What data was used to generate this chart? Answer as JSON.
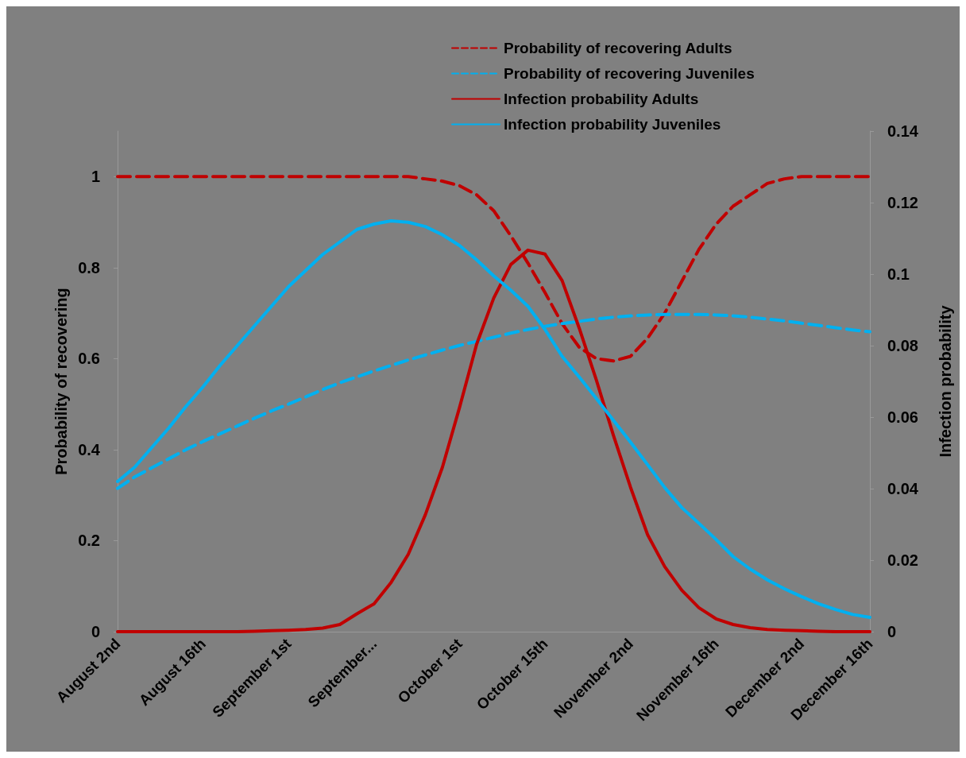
{
  "chart_data": {
    "type": "line",
    "ylabel": "Probability of recovering",
    "y2label": "Infection probability",
    "categories": [
      "August 2nd",
      null,
      null,
      null,
      null,
      "August 16th",
      null,
      null,
      null,
      null,
      "September 1st",
      null,
      null,
      null,
      null,
      "September...",
      null,
      null,
      null,
      null,
      "October 1st",
      null,
      null,
      null,
      null,
      "October 15th",
      null,
      null,
      null,
      null,
      "November 2nd",
      null,
      null,
      null,
      null,
      "November 16th",
      null,
      null,
      null,
      null,
      "December 2nd",
      null,
      null,
      null,
      "December 16th"
    ],
    "series": [
      {
        "name": "Probability of recovering Adults",
        "color": "#c00000",
        "line_style": "dashed",
        "values": [
          1,
          1,
          1,
          1,
          1,
          1,
          1,
          1,
          1,
          1,
          1,
          1,
          1,
          1,
          1,
          1,
          1,
          1,
          0.995,
          0.99,
          0.98,
          0.96,
          0.925,
          0.87,
          0.81,
          0.745,
          0.677,
          0.625,
          0.6,
          0.595,
          0.605,
          0.645,
          0.7,
          0.77,
          0.84,
          0.895,
          0.935,
          0.96,
          0.985,
          0.995,
          1,
          1,
          1,
          1,
          1
        ]
      },
      {
        "name": "Probability of recovering Juveniles",
        "color": "#00b0f0",
        "line_style": "dashed",
        "values": [
          0.315,
          0.34,
          0.36,
          0.38,
          0.4,
          0.418,
          0.435,
          0.452,
          0.469,
          0.485,
          0.5,
          0.516,
          0.532,
          0.547,
          0.56,
          0.573,
          0.585,
          0.597,
          0.608,
          0.619,
          0.629,
          0.638,
          0.647,
          0.656,
          0.664,
          0.671,
          0.677,
          0.682,
          0.687,
          0.691,
          0.694,
          0.696,
          0.697,
          0.697,
          0.697,
          0.696,
          0.694,
          0.691,
          0.687,
          0.683,
          0.678,
          0.673,
          0.668,
          0.663,
          0.659
        ]
      },
      {
        "name": "Infection probability Adults",
        "color": "#c00000",
        "line_style": "solid",
        "axis": "y2",
        "values": [
          0,
          0,
          0,
          0,
          0,
          0,
          0,
          0,
          0.0001,
          0.0003,
          0.0004,
          0.0006,
          0.001,
          0.002,
          0.005,
          0.0078,
          0.0138,
          0.0216,
          0.0327,
          0.046,
          0.0627,
          0.0804,
          0.0933,
          0.1027,
          0.1067,
          0.1056,
          0.0982,
          0.0849,
          0.0704,
          0.0549,
          0.0404,
          0.0271,
          0.0182,
          0.0116,
          0.0067,
          0.0036,
          0.002,
          0.0011,
          0.0006,
          0.0004,
          0.0003,
          0.0001,
          0,
          0,
          0
        ]
      },
      {
        "name": "Infection probability Juveniles",
        "color": "#00b0f0",
        "line_style": "solid",
        "axis": "y2",
        "values": [
          0.042,
          0.046,
          0.0515,
          0.057,
          0.063,
          0.0685,
          0.0745,
          0.08,
          0.0855,
          0.091,
          0.0965,
          0.101,
          0.1055,
          0.109,
          0.1125,
          0.114,
          0.1149,
          0.1145,
          0.1133,
          0.111,
          0.108,
          0.104,
          0.0995,
          0.0955,
          0.091,
          0.0845,
          0.077,
          0.0712,
          0.0652,
          0.0591,
          0.053,
          0.0467,
          0.0403,
          0.0347,
          0.0303,
          0.0258,
          0.021,
          0.0175,
          0.0145,
          0.012,
          0.0098,
          0.0078,
          0.0062,
          0.0048,
          0.004
        ]
      }
    ],
    "ylim": [
      0,
      1.1
    ],
    "yticks": [
      0,
      0.2,
      0.4,
      0.6,
      0.8,
      1
    ],
    "y2lim": [
      0,
      0.14
    ],
    "y2ticks": [
      0,
      0.02,
      0.04,
      0.06,
      0.08,
      0.1,
      0.12,
      0.14
    ],
    "grid": false,
    "legend": "top right",
    "marker": "none"
  }
}
